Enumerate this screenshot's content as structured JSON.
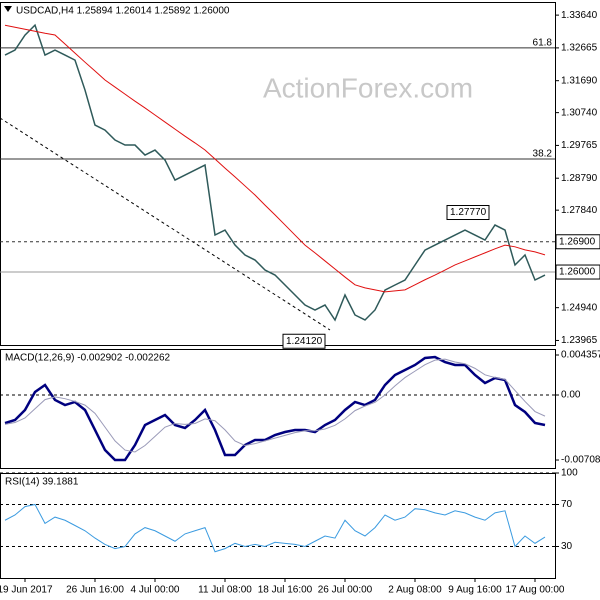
{
  "watermark": "ActionForex.com",
  "chart_data": [
    {
      "type": "line",
      "title": "USDCAD,H4  1.25894 1.26014 1.25892 1.26000",
      "categories": [
        null,
        null,
        "19 Jun 2017",
        null,
        null,
        null,
        null,
        null,
        null,
        "26 Jun 16:00",
        null,
        null,
        null,
        null,
        null,
        "4 Jul 00:00",
        null,
        null,
        null,
        null,
        null,
        null,
        "11 Jul 08:00",
        null,
        null,
        null,
        null,
        null,
        "18 Jul 16:00",
        null,
        null,
        null,
        null,
        null,
        "26 Jul 00:00",
        null,
        null,
        null,
        null,
        null,
        null,
        "2 Aug 08:00",
        null,
        null,
        null,
        null,
        null,
        "9 Aug 16:00",
        null,
        null,
        null,
        null,
        null,
        "17 Aug 00:00",
        null
      ],
      "series": [
        {
          "name": "USDCAD",
          "color": "#2f5a5a",
          "values": [
            1.32451,
            1.326,
            1.33045,
            1.33343,
            1.32451,
            1.326,
            1.32451,
            1.32302,
            1.31411,
            1.3037,
            1.30221,
            1.29924,
            1.29776,
            1.29776,
            1.29478,
            1.29627,
            1.2933,
            1.28735,
            1.28884,
            1.29032,
            1.29181,
            1.271,
            1.27249,
            1.26803,
            1.26506,
            1.26357,
            1.2606,
            1.25911,
            1.25614,
            1.25317,
            1.25019,
            1.24871,
            1.25019,
            1.24574,
            1.25317,
            1.24722,
            1.24574,
            1.24871,
            1.25465,
            1.25614,
            1.25763,
            1.26209,
            1.26654,
            1.26803,
            1.26952,
            1.271,
            1.27249,
            1.271,
            1.26952,
            1.27398,
            1.27249,
            1.26209,
            1.26506,
            1.25763,
            1.25911
          ]
        },
        {
          "name": "MA",
          "color": "#e01010",
          "values": [
            1.3334,
            1.3328,
            1.3322,
            1.3316,
            1.331,
            1.3305,
            1.3278,
            1.3251,
            1.3224,
            1.3198,
            1.3171,
            1.315,
            1.3129,
            1.3108,
            1.3088,
            1.3067,
            1.3046,
            1.3025,
            1.3004,
            1.2984,
            1.2963,
            1.2936,
            1.2909,
            1.2883,
            1.2856,
            1.2829,
            1.2799,
            1.277,
            1.274,
            1.271,
            1.268,
            1.2657,
            1.2633,
            1.2609,
            1.2585,
            1.2562,
            1.2553,
            1.2547,
            1.2541,
            1.2544,
            1.2547,
            1.2562,
            1.2577,
            1.2591,
            1.2606,
            1.2621,
            1.2633,
            1.2645,
            1.2657,
            1.2669,
            1.268,
            1.2675,
            1.2666,
            1.266,
            1.2651
          ]
        }
      ],
      "ylim": [
        1.2383,
        1.3403
      ],
      "yticks": [
        {
          "value": 1.3364,
          "label": "1.33640"
        },
        {
          "value": 1.32665,
          "label": "1.32665"
        },
        {
          "value": 1.3169,
          "label": "1.31690"
        },
        {
          "value": 1.3074,
          "label": "1.30740"
        },
        {
          "value": 1.29765,
          "label": "1.29765"
        },
        {
          "value": 1.2879,
          "label": "1.28790"
        },
        {
          "value": 1.2784,
          "label": "1.27840"
        },
        {
          "value": 1.2494,
          "label": "1.24940"
        },
        {
          "value": 1.23965,
          "label": "1.23965"
        }
      ],
      "grid": false,
      "levels": [
        {
          "value": 1.32665,
          "label": "61.8",
          "style": "solid",
          "boxed": false
        },
        {
          "value": 1.2936,
          "label": "38.2",
          "style": "solid",
          "boxed": false
        },
        {
          "value": 1.269,
          "label": "1.26900",
          "style": "dashed",
          "boxed": true
        },
        {
          "value": 1.26,
          "label": "1.26000",
          "style": "gray",
          "boxed": true
        }
      ],
      "annotations": [
        {
          "value": 1.2777,
          "label": "1.27770"
        },
        {
          "value": 1.2412,
          "label": "1.24120"
        }
      ]
    },
    {
      "type": "line",
      "title": "MACD(12,26,9) -0.002902 -0.002262",
      "series": [
        {
          "name": "MACD",
          "color": "#00007f",
          "values": [
            -0.00305,
            -0.00272,
            -0.00163,
            0.00033,
            0.00109,
            -0.00054,
            -0.00109,
            -0.00076,
            -0.00163,
            -0.00381,
            -0.00599,
            -0.00708,
            -0.00708,
            -0.00545,
            -0.00327,
            -0.00272,
            -0.00218,
            -0.00327,
            -0.00359,
            -0.00272,
            -0.00163,
            -0.00381,
            -0.00653,
            -0.00653,
            -0.00545,
            -0.0049,
            -0.0049,
            -0.00436,
            -0.00403,
            -0.00381,
            -0.00381,
            -0.00403,
            -0.00327,
            -0.00272,
            -0.00163,
            -0.00076,
            -0.00109,
            -0.00054,
            0.00109,
            0.00218,
            0.00272,
            0.00327,
            0.00403,
            0.00414,
            0.00359,
            0.00327,
            0.00327,
            0.00218,
            0.00131,
            0.00185,
            0.00163,
            -0.00109,
            -0.00185,
            -0.00305,
            -0.00327
          ]
        },
        {
          "name": "Signal",
          "color": "#9a9ab8",
          "values": [
            -0.0032,
            -0.003,
            -0.0025,
            -0.0015,
            -0.0005,
            -0.0002,
            -0.0004,
            -0.0007,
            -0.0011,
            -0.002,
            -0.0035,
            -0.005,
            -0.006,
            -0.0062,
            -0.0055,
            -0.0045,
            -0.0035,
            -0.0031,
            -0.0032,
            -0.0031,
            -0.0026,
            -0.0028,
            -0.0038,
            -0.005,
            -0.0055,
            -0.0053,
            -0.005,
            -0.0047,
            -0.0044,
            -0.0041,
            -0.0039,
            -0.0039,
            -0.0037,
            -0.0033,
            -0.0026,
            -0.0017,
            -0.0012,
            -0.0008,
            0.0,
            0.001,
            0.0019,
            0.0026,
            0.0033,
            0.0038,
            0.0039,
            0.0036,
            0.0034,
            0.0029,
            0.0022,
            0.0019,
            0.0017,
            0.0005,
            -0.0007,
            -0.0018,
            -0.0023
          ]
        }
      ],
      "ylim": [
        -0.00795,
        0.00501
      ],
      "yticks": [
        0.004357,
        {
          "value": 0,
          "label": "0.00"
        },
        -0.007081
      ],
      "grid": "zero"
    },
    {
      "type": "line",
      "title": "RSI(14) 39.1881",
      "series": [
        {
          "name": "RSI",
          "color": "#3b9be0",
          "values": [
            55,
            60,
            68,
            70,
            52,
            58,
            55,
            50,
            45,
            38,
            32,
            28,
            30,
            42,
            48,
            45,
            40,
            35,
            42,
            45,
            48,
            25,
            28,
            33,
            30,
            32,
            30,
            34,
            33,
            32,
            30,
            35,
            40,
            38,
            55,
            45,
            40,
            48,
            60,
            55,
            58,
            66,
            65,
            62,
            60,
            64,
            62,
            58,
            55,
            62,
            64,
            30,
            40,
            33,
            39
          ]
        }
      ],
      "ylim": [
        0,
        100
      ],
      "yticks": [
        100,
        70,
        30
      ],
      "grid": true
    }
  ]
}
